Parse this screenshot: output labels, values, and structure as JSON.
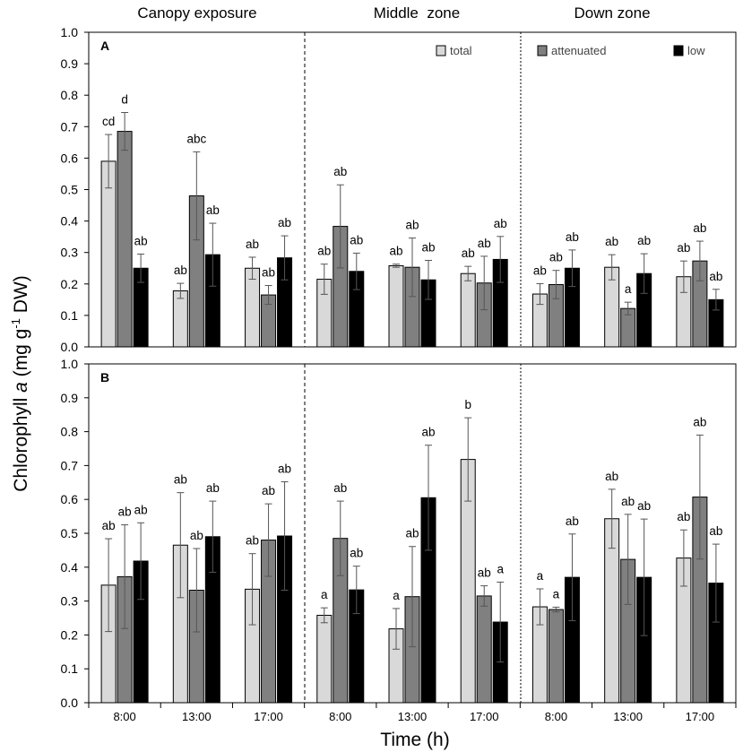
{
  "chart_data": {
    "type": "bar",
    "ylabel_prefix": "Chlorophyll ",
    "ylabel_italic": "a",
    "ylabel_unit_pre": " (mg g",
    "ylabel_sup": "-1",
    "ylabel_unit_post": " DW)",
    "xlabel": "Time (h)",
    "ylim": [
      0,
      1.0
    ],
    "yticks": [
      "0.0",
      "0.1",
      "0.2",
      "0.3",
      "0.4",
      "0.5",
      "0.6",
      "0.7",
      "0.8",
      "0.9",
      "1.0"
    ],
    "zones": [
      "Canopy exposure",
      "Middle  zone",
      "Down zone"
    ],
    "times": [
      "8:00",
      "13:00",
      "17:00"
    ],
    "series_names": [
      "total",
      "attenuated",
      "low"
    ],
    "colors": {
      "total": "#d9d9d9",
      "attenuated": "#808080",
      "low": "#000000"
    },
    "panels": [
      {
        "label": "A",
        "groups": [
          {
            "zone": "Canopy exposure",
            "time": "8:00",
            "values": [
              0.59,
              0.685,
              0.25
            ],
            "errors": [
              0.085,
              0.06,
              0.045
            ],
            "letters": [
              "cd",
              "d",
              "ab"
            ]
          },
          {
            "zone": "Canopy exposure",
            "time": "13:00",
            "values": [
              0.178,
              0.48,
              0.293
            ],
            "errors": [
              0.024,
              0.14,
              0.1
            ],
            "letters": [
              "ab",
              "abc",
              "ab"
            ]
          },
          {
            "zone": "Canopy exposure",
            "time": "17:00",
            "values": [
              0.25,
              0.165,
              0.283
            ],
            "errors": [
              0.035,
              0.03,
              0.07
            ],
            "letters": [
              "ab",
              "ab",
              "ab"
            ]
          },
          {
            "zone": "Middle  zone",
            "time": "8:00",
            "values": [
              0.215,
              0.383,
              0.24
            ],
            "errors": [
              0.048,
              0.132,
              0.058
            ],
            "letters": [
              "ab",
              "ab",
              "ab"
            ]
          },
          {
            "zone": "Middle  zone",
            "time": "13:00",
            "values": [
              0.258,
              0.253,
              0.213
            ],
            "errors": [
              0.005,
              0.093,
              0.062
            ],
            "letters": [
              "ab",
              "ab",
              "ab"
            ]
          },
          {
            "zone": "Middle  zone",
            "time": "17:00",
            "values": [
              0.233,
              0.203,
              0.278
            ],
            "errors": [
              0.023,
              0.085,
              0.073
            ],
            "letters": [
              "ab",
              "ab",
              "ab"
            ]
          },
          {
            "zone": "Down zone",
            "time": "8:00",
            "values": [
              0.168,
              0.198,
              0.25
            ],
            "errors": [
              0.033,
              0.045,
              0.058
            ],
            "letters": [
              "ab",
              "ab",
              "ab"
            ]
          },
          {
            "zone": "Down zone",
            "time": "13:00",
            "values": [
              0.253,
              0.122,
              0.233
            ],
            "errors": [
              0.04,
              0.02,
              0.063
            ],
            "letters": [
              "ab",
              "a",
              "ab"
            ]
          },
          {
            "zone": "Down zone",
            "time": "17:00",
            "values": [
              0.223,
              0.273,
              0.15
            ],
            "errors": [
              0.05,
              0.063,
              0.033
            ],
            "letters": [
              "ab",
              "ab",
              "ab"
            ]
          }
        ]
      },
      {
        "label": "B",
        "groups": [
          {
            "zone": "Canopy exposure",
            "time": "8:00",
            "values": [
              0.347,
              0.372,
              0.418
            ],
            "errors": [
              0.137,
              0.153,
              0.113
            ],
            "letters": [
              "ab",
              "ab",
              "ab"
            ]
          },
          {
            "zone": "Canopy exposure",
            "time": "13:00",
            "values": [
              0.465,
              0.332,
              0.49
            ],
            "errors": [
              0.155,
              0.123,
              0.105
            ],
            "letters": [
              "ab",
              "ab",
              "ab"
            ]
          },
          {
            "zone": "Canopy exposure",
            "time": "17:00",
            "values": [
              0.335,
              0.48,
              0.492
            ],
            "errors": [
              0.105,
              0.107,
              0.16
            ],
            "letters": [
              "ab",
              "ab",
              "ab"
            ]
          },
          {
            "zone": "Middle  zone",
            "time": "8:00",
            "values": [
              0.258,
              0.485,
              0.333
            ],
            "errors": [
              0.022,
              0.11,
              0.07
            ],
            "letters": [
              "a",
              "ab",
              "ab"
            ]
          },
          {
            "zone": "Middle  zone",
            "time": "13:00",
            "values": [
              0.218,
              0.313,
              0.605
            ],
            "errors": [
              0.06,
              0.148,
              0.155
            ],
            "letters": [
              "a",
              "ab",
              "ab"
            ]
          },
          {
            "zone": "Middle  zone",
            "time": "17:00",
            "values": [
              0.718,
              0.315,
              0.238
            ],
            "errors": [
              0.123,
              0.03,
              0.118
            ],
            "letters": [
              "b",
              "ab",
              "a"
            ]
          },
          {
            "zone": "Down zone",
            "time": "8:00",
            "values": [
              0.283,
              0.275,
              0.37
            ],
            "errors": [
              0.053,
              0.007,
              0.128
            ],
            "letters": [
              "a",
              "a",
              "ab"
            ]
          },
          {
            "zone": "Down zone",
            "time": "13:00",
            "values": [
              0.543,
              0.423,
              0.37
            ],
            "errors": [
              0.087,
              0.133,
              0.172
            ],
            "letters": [
              "ab",
              "ab",
              "ab"
            ]
          },
          {
            "zone": "Down zone",
            "time": "17:00",
            "values": [
              0.427,
              0.607,
              0.353
            ],
            "errors": [
              0.083,
              0.183,
              0.115
            ],
            "letters": [
              "ab",
              "ab",
              "ab"
            ]
          }
        ]
      }
    ]
  }
}
